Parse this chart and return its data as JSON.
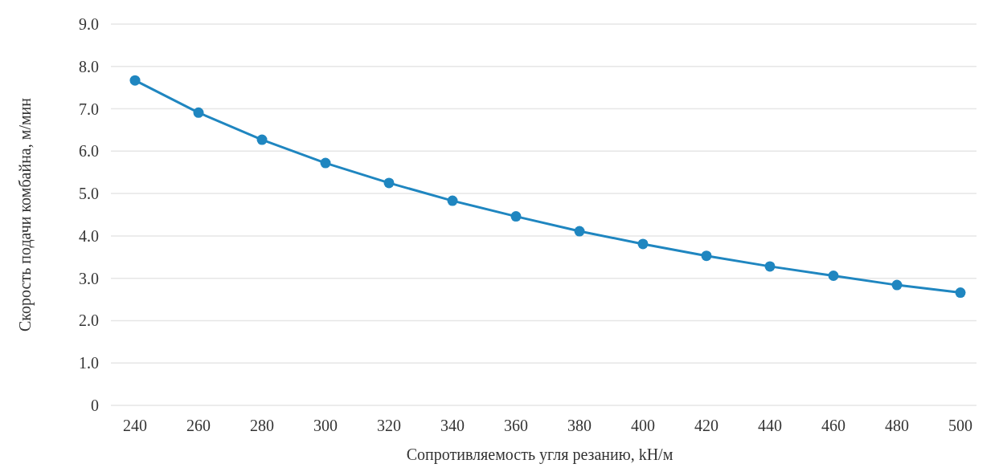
{
  "chart_data": {
    "type": "line",
    "xlabel": "Сопротивляемость угля резанию, kH/м",
    "ylabel": "Скорость подачи комбайна, м/мин",
    "categories": [
      "240",
      "260",
      "280",
      "300",
      "320",
      "340",
      "360",
      "380",
      "400",
      "420",
      "440",
      "460",
      "480",
      "500"
    ],
    "series": [
      {
        "color": "#1f86c0",
        "values": [
          7.67,
          6.91,
          6.27,
          5.72,
          5.25,
          4.83,
          4.46,
          4.11,
          3.81,
          3.53,
          3.28,
          3.06,
          2.84,
          2.66
        ]
      }
    ],
    "ylim": [
      0,
      9
    ],
    "yticks": [
      {
        "value": 0,
        "label": "0"
      },
      {
        "value": 1,
        "label": "1.0"
      },
      {
        "value": 2,
        "label": "2.0"
      },
      {
        "value": 3,
        "label": "3.0"
      },
      {
        "value": 4,
        "label": "4.0"
      },
      {
        "value": 5,
        "label": "5.0"
      },
      {
        "value": 6,
        "label": "6.0"
      },
      {
        "value": 7,
        "label": "7.0"
      },
      {
        "value": 8,
        "label": "8.0"
      },
      {
        "value": 9,
        "label": "9.0"
      }
    ],
    "grid": "y",
    "marker": "circle",
    "line_style": "solid"
  }
}
